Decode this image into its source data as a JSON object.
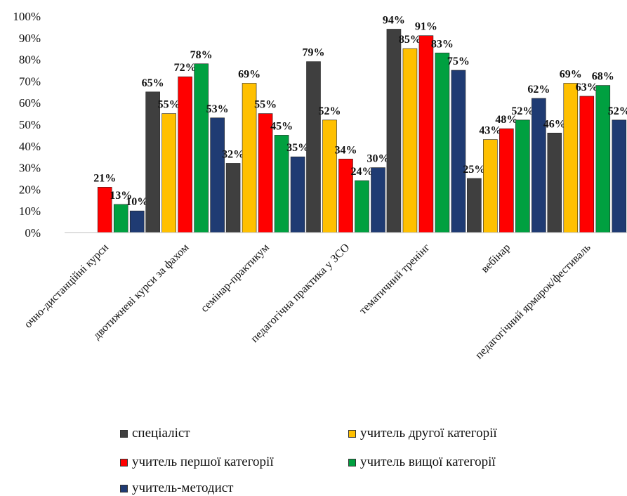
{
  "chart_data": {
    "type": "bar",
    "categories": [
      "очно-дистанційні курси",
      "двотижневі курси за фахом",
      "семінар-практикум",
      "педагогічна практика у ЗСО",
      "тематичний тренінг",
      "вебінар",
      "педагогічний ярмарок/фестиваль"
    ],
    "series": [
      {
        "name": "спеціаліст",
        "color": "#3f3f3f",
        "values": [
          null,
          65,
          32,
          79,
          94,
          25,
          46
        ],
        "labels": [
          "",
          "65%",
          "32%",
          "79%",
          "94%",
          "25%",
          "46%"
        ]
      },
      {
        "name": "учитель другої категорії",
        "color": "#ffc000",
        "values": [
          null,
          55,
          69,
          52,
          85,
          43,
          69
        ],
        "labels": [
          "",
          "55%",
          "69%",
          "52%",
          "85%",
          "43%",
          "69%"
        ]
      },
      {
        "name": "учитель першої категорії",
        "color": "#ff0000",
        "values": [
          21,
          72,
          55,
          34,
          91,
          48,
          63
        ],
        "labels": [
          "21%",
          "72%",
          "55%",
          "34%",
          "91%",
          "48%",
          "63%"
        ]
      },
      {
        "name": "учитель вищої категорії",
        "color": "#00a040",
        "values": [
          13,
          78,
          45,
          24,
          83,
          52,
          68
        ],
        "labels": [
          "13%",
          "78%",
          "45%",
          "24%",
          "83%",
          "52%",
          "68%"
        ]
      },
      {
        "name": "учитель-методист",
        "color": "#1f3b73",
        "values": [
          10,
          53,
          35,
          30,
          75,
          62,
          52
        ],
        "labels": [
          "10%",
          "53%",
          "35%",
          "30%",
          "75%",
          "62%",
          "52%"
        ]
      }
    ],
    "y_ticks": [
      "0%",
      "10%",
      "20%",
      "30%",
      "40%",
      "50%",
      "60%",
      "70%",
      "80%",
      "90%",
      "100%"
    ],
    "ylim": [
      0,
      100
    ],
    "grid": false,
    "legend_position": "bottom"
  }
}
